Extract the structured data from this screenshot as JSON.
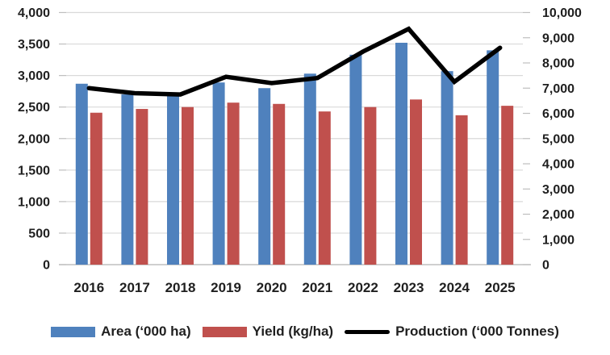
{
  "chart_data": {
    "type": "combo",
    "title": "",
    "categories": [
      "2016",
      "2017",
      "2018",
      "2019",
      "2020",
      "2021",
      "2022",
      "2023",
      "2024",
      "2025"
    ],
    "series": [
      {
        "name": "Area (‘000 ha)",
        "type": "bar",
        "axis": "left",
        "color": "#4f81bd",
        "values": [
          2870,
          2700,
          2710,
          2890,
          2800,
          3030,
          3330,
          3520,
          3070,
          3400
        ]
      },
      {
        "name": "Yield (kg/ha)",
        "type": "bar",
        "axis": "left",
        "color": "#c0504d",
        "values": [
          2410,
          2470,
          2500,
          2570,
          2550,
          2430,
          2500,
          2620,
          2370,
          2520
        ]
      },
      {
        "name": "Production (‘000 Tonnes)",
        "type": "line",
        "axis": "right",
        "color": "#000000",
        "values": [
          7000,
          6800,
          6750,
          7450,
          7200,
          7400,
          8450,
          9350,
          7250,
          8600
        ]
      }
    ],
    "left_axis": {
      "min": 0,
      "max": 4000,
      "step": 500,
      "tick_labels": [
        "0",
        "500",
        "1,000",
        "1,500",
        "2,000",
        "2,500",
        "3,000",
        "3,500",
        "4,000"
      ]
    },
    "right_axis": {
      "min": 0,
      "max": 10000,
      "step": 1000,
      "tick_labels": [
        "0",
        "1,000",
        "2,000",
        "3,000",
        "4,000",
        "5,000",
        "6,000",
        "7,000",
        "8,000",
        "9,000",
        "10,000"
      ]
    },
    "xlabel": "",
    "ylabel": "",
    "grid": "horizontal",
    "legend_position": "bottom"
  },
  "colors": {
    "gridline": "#d9d9d9",
    "axis_line": "#bfbfbf",
    "text": "#1f1f1f",
    "background": "#ffffff"
  }
}
